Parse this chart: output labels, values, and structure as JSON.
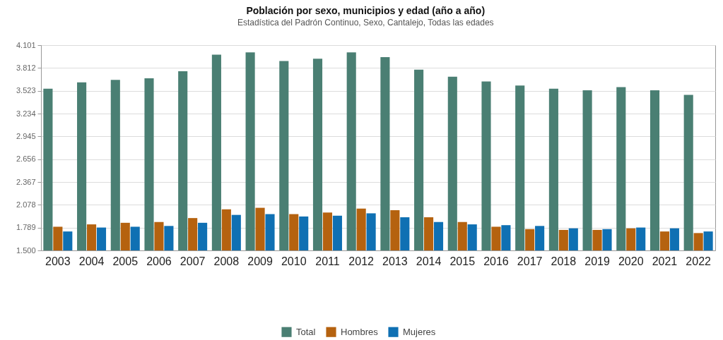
{
  "chart_data": {
    "type": "bar",
    "title": "Población por sexo, municipios y edad (año a año)",
    "subtitle": "Estadística del Padrón Continuo, Sexo, Cantalejo, Todas las edades",
    "categories": [
      "2003",
      "2004",
      "2005",
      "2006",
      "2007",
      "2008",
      "2009",
      "2010",
      "2011",
      "2012",
      "2013",
      "2014",
      "2015",
      "2016",
      "2017",
      "2018",
      "2019",
      "2020",
      "2021",
      "2022"
    ],
    "series": [
      {
        "name": "Total",
        "color": "#4a7f73",
        "values": [
          3550,
          3630,
          3660,
          3680,
          3770,
          3980,
          4010,
          3900,
          3930,
          4010,
          3950,
          3790,
          3700,
          3640,
          3590,
          3550,
          3530,
          3570,
          3530,
          3470
        ]
      },
      {
        "name": "Hombres",
        "color": "#b5620f",
        "values": [
          1800,
          1830,
          1850,
          1860,
          1910,
          2020,
          2040,
          1960,
          1980,
          2030,
          2010,
          1920,
          1860,
          1800,
          1770,
          1760,
          1760,
          1780,
          1740,
          1720
        ]
      },
      {
        "name": "Mujeres",
        "color": "#0f70b3",
        "values": [
          1740,
          1790,
          1800,
          1810,
          1850,
          1950,
          1960,
          1930,
          1940,
          1970,
          1920,
          1860,
          1830,
          1820,
          1810,
          1780,
          1770,
          1790,
          1780,
          1740
        ]
      }
    ],
    "ylim": [
      1500,
      4101
    ],
    "yticks": [
      {
        "value": 1500,
        "label": "1.500"
      },
      {
        "value": 1789,
        "label": "1.789"
      },
      {
        "value": 2078,
        "label": "2.078"
      },
      {
        "value": 2367,
        "label": "2.367"
      },
      {
        "value": 2656,
        "label": "2.656"
      },
      {
        "value": 2945,
        "label": "2.945"
      },
      {
        "value": 3234,
        "label": "3.234"
      },
      {
        "value": 3523,
        "label": "3.523"
      },
      {
        "value": 3812,
        "label": "3.812"
      },
      {
        "value": 4101,
        "label": "4.101"
      }
    ],
    "grid": "y",
    "legend": "bottom"
  }
}
